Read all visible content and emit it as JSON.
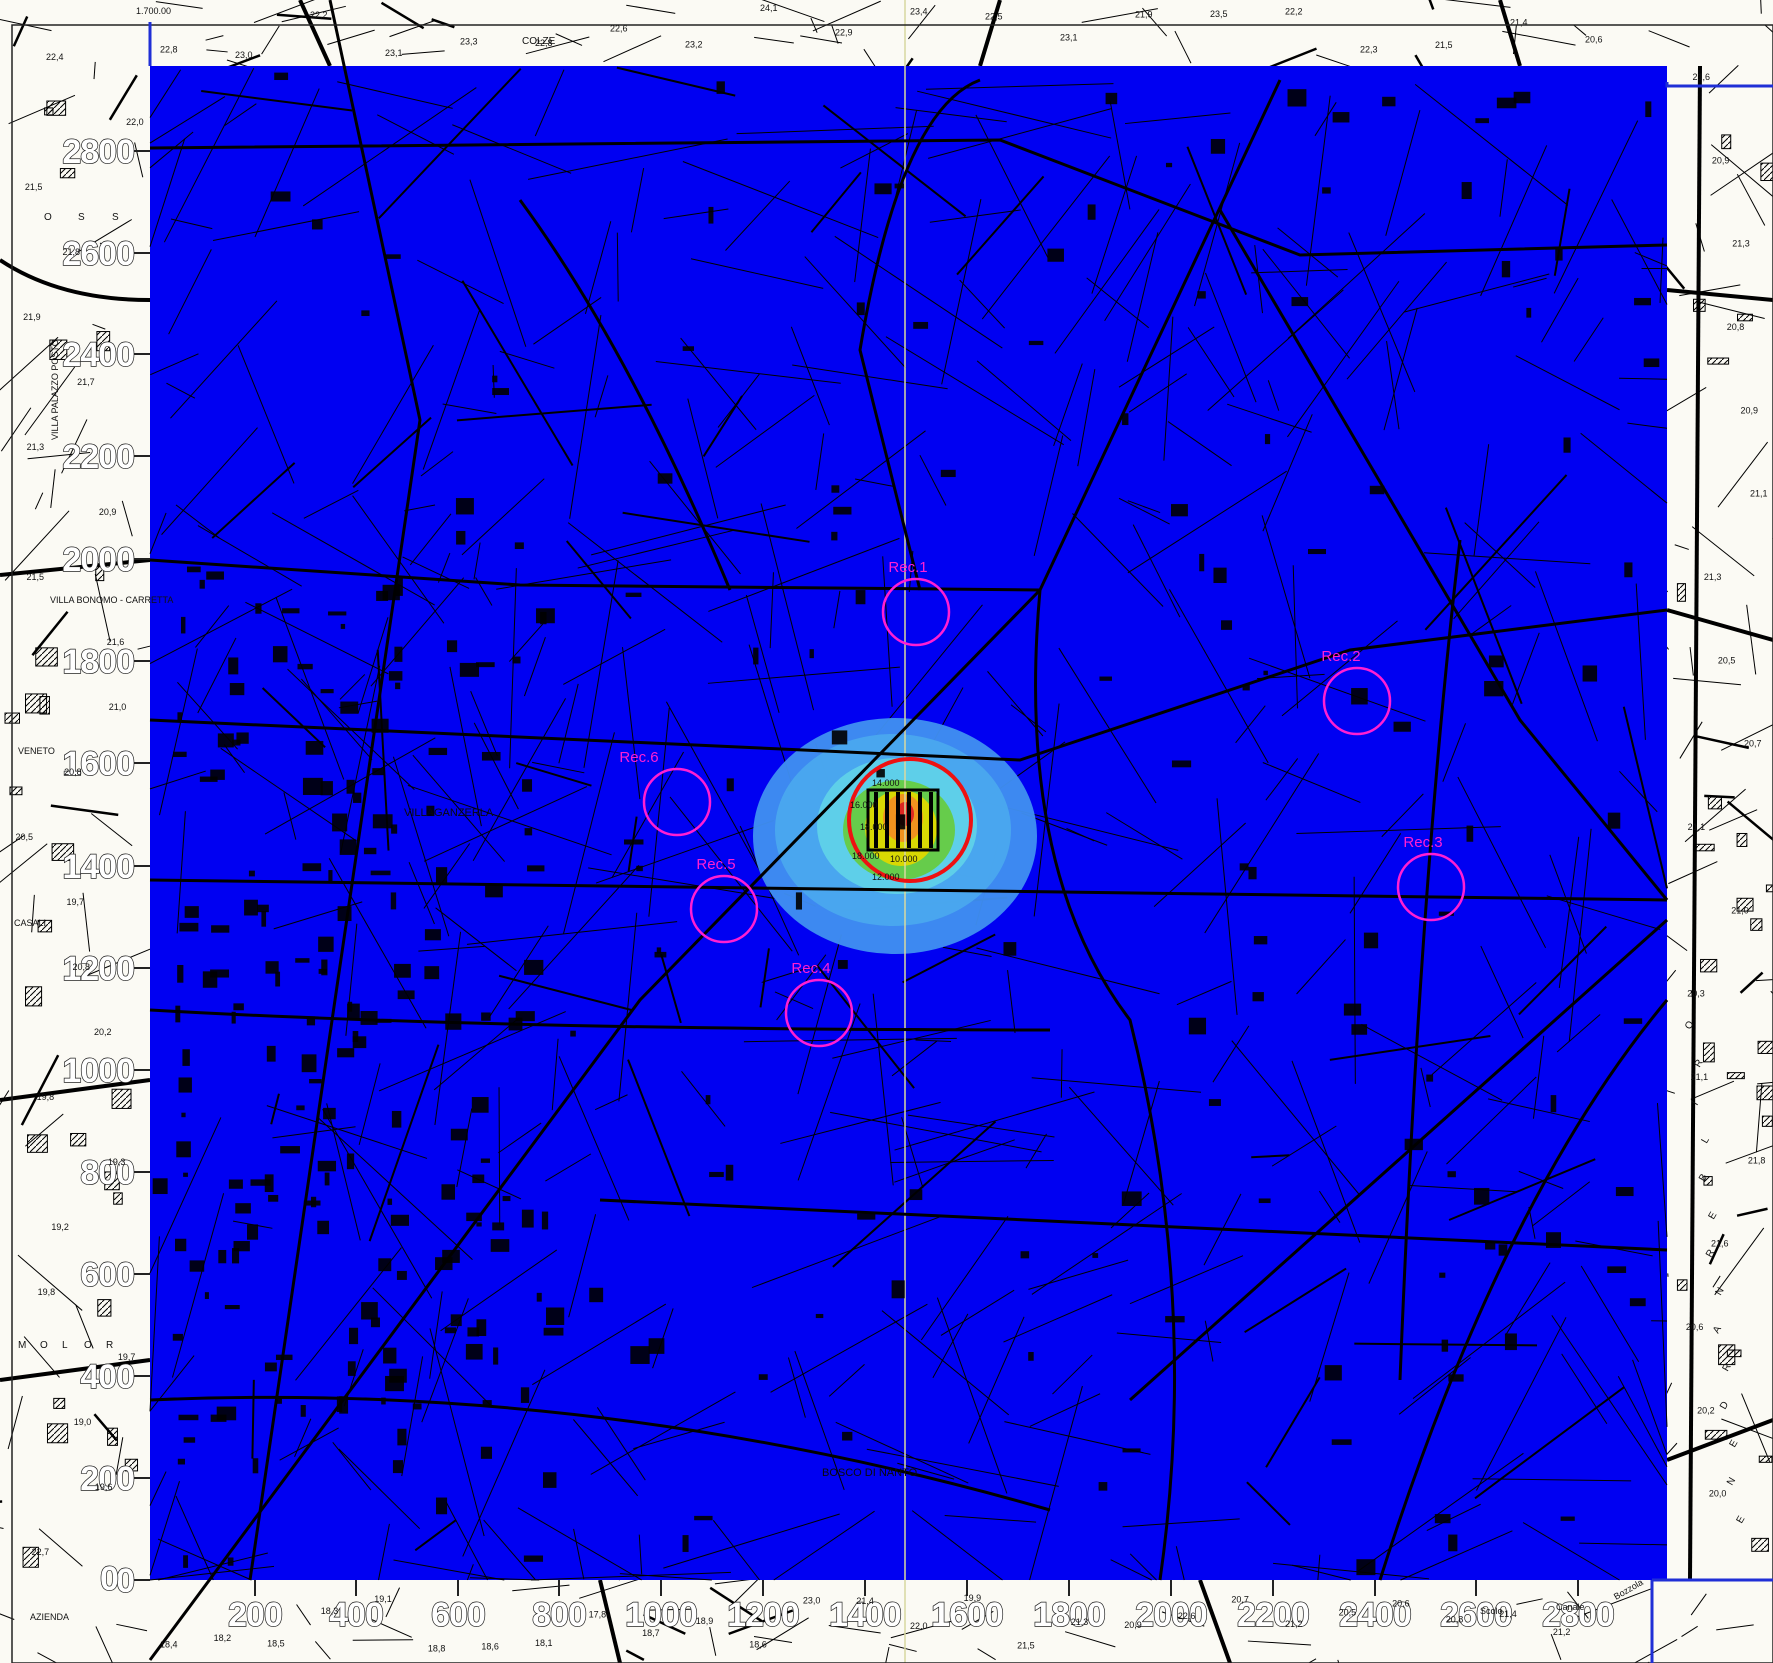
{
  "map": {
    "colors": {
      "plume_background": "#0000f2",
      "paper": "#fbfaf4",
      "linework": "#000000",
      "frame_blue": "#1f2fd6",
      "receptor": "#ff1fd2",
      "source_ring": "#ee1111",
      "contour_light_blue": "#3f8ff0",
      "contour_cyan": "#5fd0e8",
      "contour_green": "#66cc44",
      "contour_yellow": "#ddd800",
      "contour_orange": "#f09020",
      "contour_red": "#dd2222"
    },
    "y_axis_ticks": [
      "2800",
      "2600",
      "2400",
      "2200",
      "2000",
      "1800",
      "1600",
      "1400",
      "1200",
      "1000",
      "800",
      "600",
      "400",
      "200",
      "0"
    ],
    "x_axis_ticks": [
      "200",
      "400",
      "600",
      "800",
      "1000",
      "1200",
      "1400",
      "1600",
      "1800",
      "2000",
      "2200",
      "2400",
      "2600",
      "2800"
    ],
    "receptors": [
      "Rec.1",
      "Rec.2",
      "Rec.3",
      "Rec.4",
      "Rec.5",
      "Rec.6"
    ],
    "places": {
      "colze": "COLZE",
      "villaganzerla": "VILLAGANZERLA",
      "bosco": "BOSCO DI NANTO",
      "villa_bonomo": "VILLA BONOMO - CARRETTA",
      "villa_palazzo": "VILLA PALAZZO POSTO",
      "veneto": "VENETO",
      "casali": "CASALI",
      "scolo": "Scolo",
      "canale": "Canale",
      "bozzola": "Bozzola",
      "azienda": "AZIENDA"
    },
    "contour_labels": [
      "18.000",
      "16.000",
      "14.000",
      "12.000",
      "10.000",
      "18.000"
    ],
    "margin_letters_left": [
      "O",
      "S",
      "S"
    ],
    "margin_letters_left_lower": [
      "M",
      "O",
      "L",
      "O",
      "R"
    ],
    "margin_letters_right": [
      "O",
      "R",
      "I",
      "L",
      "B",
      "E",
      "R",
      "N",
      "A",
      "R",
      "D",
      "E",
      "N",
      "E"
    ],
    "sheet_marker": "1.700.00",
    "spot_heights": [
      "22,4",
      "22,0",
      "21,5",
      "21,8",
      "21,9",
      "21,7",
      "21,3",
      "20,9",
      "21,5",
      "21,6",
      "21,0",
      "20,8",
      "20,5",
      "19,7",
      "20,8",
      "20,2",
      "19,8",
      "19,3",
      "19,2",
      "19,8",
      "19,7",
      "19,0",
      "19,6",
      "22,7",
      "22,8",
      "23,0",
      "22,2",
      "23,1",
      "23,3",
      "22,8",
      "22,6",
      "23,2",
      "24,1",
      "22,9",
      "23,4",
      "22,5",
      "23,1",
      "21,9",
      "23,5",
      "22,2",
      "22,3",
      "21,5",
      "21,4",
      "20,6",
      "21,6",
      "20,9",
      "21,3",
      "20,8",
      "20,9",
      "21,1",
      "21,3",
      "20,5",
      "20,7",
      "21,1",
      "21,0",
      "20,3",
      "21,1",
      "21,8",
      "21,6",
      "20,6",
      "20,2",
      "20,0",
      "18,4",
      "18,2",
      "18,5",
      "18,3",
      "19,1",
      "18,8",
      "18,6",
      "18,1",
      "17,8",
      "18,7",
      "18,9",
      "18,6",
      "23,0",
      "21,4",
      "22,0",
      "19,9",
      "21,5",
      "21,3",
      "20,9",
      "22,6",
      "20,7",
      "21,2",
      "20,5",
      "20,6",
      "20,8",
      "21,4",
      "21,2"
    ]
  }
}
